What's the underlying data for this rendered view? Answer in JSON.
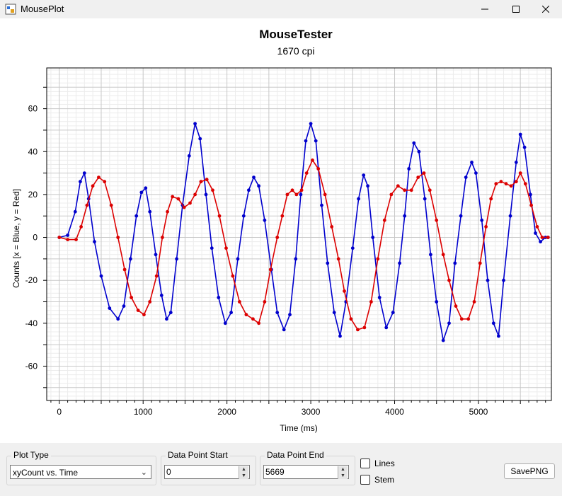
{
  "window": {
    "title": "MousePlot"
  },
  "chart_data": {
    "type": "scatter",
    "title": "MouseTester",
    "subtitle": "1670 cpi",
    "xlabel": "Time (ms)",
    "ylabel": "Counts [x = Blue, y = Red]",
    "xlim": [
      -150,
      5870
    ],
    "ylim": [
      -76,
      79
    ],
    "x_ticks": [
      0,
      1000,
      2000,
      3000,
      4000,
      5000
    ],
    "x_tick_labels": [
      "0",
      "1000",
      "2000",
      "3000",
      "4000",
      "5000"
    ],
    "y_ticks": [
      60,
      40,
      20,
      0,
      -20,
      -40,
      -60
    ],
    "y_tick_labels": [
      "60",
      "40",
      "20",
      "0",
      "-20",
      "-40",
      "-60"
    ],
    "grid": true,
    "series": [
      {
        "name": "x",
        "color": "#0000cd",
        "points": [
          [
            0,
            0
          ],
          [
            100,
            1
          ],
          [
            190,
            12
          ],
          [
            250,
            26
          ],
          [
            300,
            30
          ],
          [
            350,
            18
          ],
          [
            420,
            -2
          ],
          [
            500,
            -18
          ],
          [
            600,
            -33
          ],
          [
            700,
            -38
          ],
          [
            770,
            -32
          ],
          [
            850,
            -10
          ],
          [
            920,
            10
          ],
          [
            980,
            21
          ],
          [
            1030,
            23
          ],
          [
            1080,
            12
          ],
          [
            1150,
            -8
          ],
          [
            1220,
            -27
          ],
          [
            1280,
            -38
          ],
          [
            1330,
            -35
          ],
          [
            1400,
            -10
          ],
          [
            1470,
            15
          ],
          [
            1550,
            38
          ],
          [
            1620,
            53
          ],
          [
            1680,
            46
          ],
          [
            1750,
            20
          ],
          [
            1820,
            -5
          ],
          [
            1900,
            -28
          ],
          [
            1980,
            -40
          ],
          [
            2050,
            -35
          ],
          [
            2130,
            -10
          ],
          [
            2200,
            10
          ],
          [
            2260,
            22
          ],
          [
            2320,
            28
          ],
          [
            2380,
            24
          ],
          [
            2450,
            8
          ],
          [
            2530,
            -15
          ],
          [
            2600,
            -35
          ],
          [
            2680,
            -43
          ],
          [
            2750,
            -36
          ],
          [
            2820,
            -10
          ],
          [
            2880,
            20
          ],
          [
            2940,
            45
          ],
          [
            3000,
            53
          ],
          [
            3060,
            45
          ],
          [
            3130,
            15
          ],
          [
            3200,
            -12
          ],
          [
            3280,
            -35
          ],
          [
            3350,
            -46
          ],
          [
            3420,
            -30
          ],
          [
            3500,
            -5
          ],
          [
            3570,
            18
          ],
          [
            3630,
            29
          ],
          [
            3680,
            24
          ],
          [
            3740,
            0
          ],
          [
            3820,
            -28
          ],
          [
            3900,
            -42
          ],
          [
            3980,
            -35
          ],
          [
            4060,
            -12
          ],
          [
            4120,
            10
          ],
          [
            4170,
            32
          ],
          [
            4230,
            44
          ],
          [
            4290,
            40
          ],
          [
            4360,
            18
          ],
          [
            4430,
            -8
          ],
          [
            4500,
            -30
          ],
          [
            4580,
            -48
          ],
          [
            4650,
            -40
          ],
          [
            4720,
            -12
          ],
          [
            4790,
            10
          ],
          [
            4850,
            28
          ],
          [
            4920,
            35
          ],
          [
            4970,
            30
          ],
          [
            5040,
            8
          ],
          [
            5110,
            -20
          ],
          [
            5180,
            -40
          ],
          [
            5240,
            -46
          ],
          [
            5300,
            -20
          ],
          [
            5380,
            10
          ],
          [
            5450,
            35
          ],
          [
            5500,
            48
          ],
          [
            5550,
            42
          ],
          [
            5620,
            20
          ],
          [
            5680,
            2
          ],
          [
            5740,
            -2
          ],
          [
            5800,
            0
          ],
          [
            5830,
            0
          ]
        ]
      },
      {
        "name": "y",
        "color": "#dc0000",
        "points": [
          [
            0,
            0
          ],
          [
            100,
            -1
          ],
          [
            200,
            -1
          ],
          [
            260,
            5
          ],
          [
            330,
            15
          ],
          [
            400,
            24
          ],
          [
            470,
            28
          ],
          [
            540,
            26
          ],
          [
            620,
            15
          ],
          [
            700,
            0
          ],
          [
            780,
            -15
          ],
          [
            860,
            -28
          ],
          [
            940,
            -34
          ],
          [
            1010,
            -36
          ],
          [
            1080,
            -30
          ],
          [
            1160,
            -18
          ],
          [
            1230,
            0
          ],
          [
            1290,
            12
          ],
          [
            1350,
            19
          ],
          [
            1420,
            18
          ],
          [
            1490,
            14
          ],
          [
            1560,
            16
          ],
          [
            1620,
            20
          ],
          [
            1690,
            26
          ],
          [
            1760,
            27
          ],
          [
            1830,
            22
          ],
          [
            1910,
            10
          ],
          [
            1990,
            -5
          ],
          [
            2070,
            -18
          ],
          [
            2150,
            -30
          ],
          [
            2230,
            -36
          ],
          [
            2310,
            -38
          ],
          [
            2380,
            -40
          ],
          [
            2450,
            -30
          ],
          [
            2520,
            -15
          ],
          [
            2600,
            0
          ],
          [
            2660,
            10
          ],
          [
            2720,
            20
          ],
          [
            2780,
            22
          ],
          [
            2830,
            20
          ],
          [
            2890,
            22
          ],
          [
            2950,
            30
          ],
          [
            3020,
            36
          ],
          [
            3090,
            32
          ],
          [
            3170,
            20
          ],
          [
            3250,
            5
          ],
          [
            3330,
            -10
          ],
          [
            3400,
            -25
          ],
          [
            3480,
            -38
          ],
          [
            3560,
            -43
          ],
          [
            3640,
            -42
          ],
          [
            3720,
            -30
          ],
          [
            3800,
            -10
          ],
          [
            3880,
            8
          ],
          [
            3960,
            20
          ],
          [
            4040,
            24
          ],
          [
            4120,
            22
          ],
          [
            4200,
            22
          ],
          [
            4280,
            28
          ],
          [
            4350,
            30
          ],
          [
            4420,
            22
          ],
          [
            4500,
            8
          ],
          [
            4580,
            -8
          ],
          [
            4650,
            -20
          ],
          [
            4730,
            -32
          ],
          [
            4800,
            -38
          ],
          [
            4880,
            -38
          ],
          [
            4950,
            -30
          ],
          [
            5020,
            -12
          ],
          [
            5090,
            5
          ],
          [
            5150,
            18
          ],
          [
            5210,
            25
          ],
          [
            5270,
            26
          ],
          [
            5330,
            25
          ],
          [
            5390,
            24
          ],
          [
            5450,
            26
          ],
          [
            5500,
            30
          ],
          [
            5560,
            25
          ],
          [
            5630,
            15
          ],
          [
            5700,
            5
          ],
          [
            5760,
            0
          ],
          [
            5830,
            0
          ]
        ]
      }
    ]
  },
  "controls": {
    "plot_type": {
      "label": "Plot Type",
      "value": "xyCount vs. Time"
    },
    "data_point_start": {
      "label": "Data Point Start",
      "value": "0"
    },
    "data_point_end": {
      "label": "Data Point End",
      "value": "5669"
    },
    "lines": {
      "label": "Lines",
      "checked": false
    },
    "stem": {
      "label": "Stem",
      "checked": false
    },
    "save_button": {
      "label": "SavePNG"
    }
  }
}
